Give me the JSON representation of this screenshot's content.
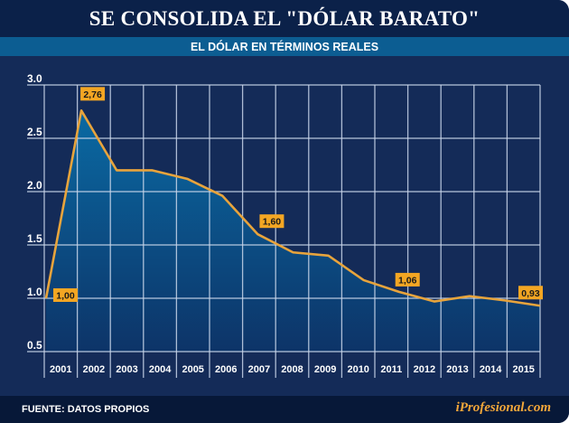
{
  "title": "SE CONSOLIDA EL \"DÓLAR BARATO\"",
  "subtitle": "EL DÓLAR EN TÉRMINOS REALES",
  "footer": {
    "source": "FUENTE: DATOS PROPIOS",
    "brand": "iProfesional.com"
  },
  "colors": {
    "line": "#e8a43c",
    "label_bg": "#f3a623",
    "area_top": "#0a6aa3",
    "area_bottom": "#0d3468",
    "grid": "#c9d6ea"
  },
  "chart_data": {
    "type": "area",
    "title": "SE CONSOLIDA EL \"DÓLAR BARATO\"",
    "subtitle": "EL DÓLAR EN TÉRMINOS REALES",
    "categories": [
      "2001",
      "2002",
      "2003",
      "2004",
      "2005",
      "2006",
      "2007",
      "2008",
      "2009",
      "2010",
      "2011",
      "2012",
      "2013",
      "2014",
      "2015"
    ],
    "values": [
      1.0,
      2.76,
      2.2,
      2.2,
      2.12,
      1.96,
      1.6,
      1.43,
      1.4,
      1.17,
      1.06,
      0.97,
      1.02,
      0.98,
      0.93
    ],
    "yticks": [
      "3.0",
      "2.5",
      "2.0",
      "1.5",
      "1.0",
      "0.5"
    ],
    "ytick_values": [
      3.0,
      2.5,
      2.0,
      1.5,
      1.0,
      0.5
    ],
    "ylim": [
      0.5,
      3.0
    ],
    "grid": true,
    "data_labels": [
      {
        "index": 0,
        "text": "1,00"
      },
      {
        "index": 1,
        "text": "2,76"
      },
      {
        "index": 6,
        "text": "1,60"
      },
      {
        "index": 10,
        "text": "1,06"
      },
      {
        "index": 14,
        "text": "0,93"
      }
    ]
  }
}
